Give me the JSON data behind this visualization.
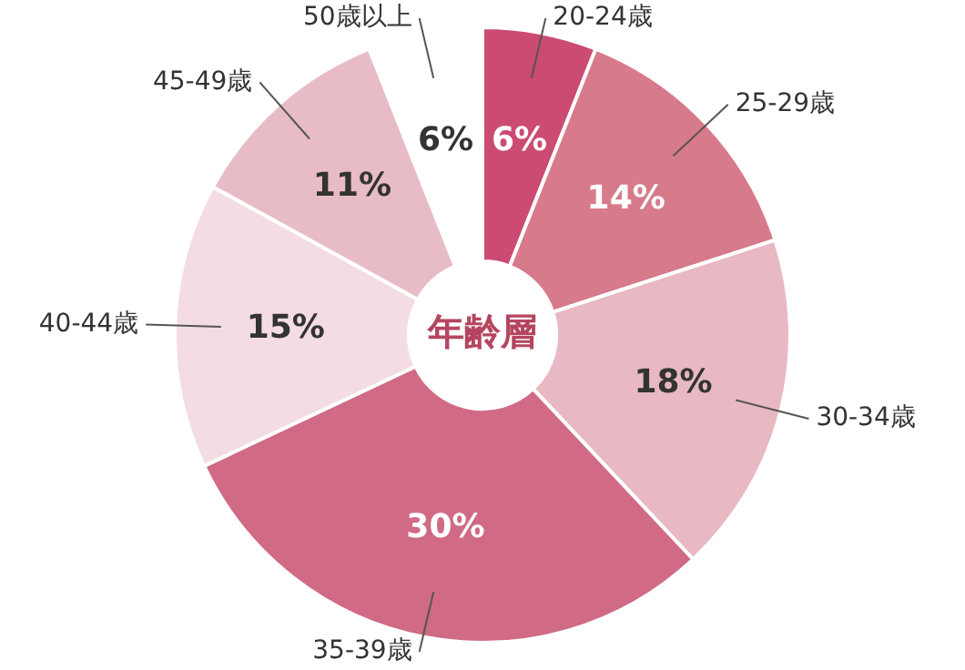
{
  "chart_data": {
    "type": "donut",
    "title": "年齢層",
    "categories": [
      "20-24歳",
      "25-29歳",
      "30-34歳",
      "35-39歳",
      "40-44歳",
      "45-49歳",
      "50歳以上"
    ],
    "values": [
      6,
      14,
      18,
      30,
      15,
      11,
      6
    ],
    "value_labels": [
      "6%",
      "14%",
      "18%",
      "30%",
      "15%",
      "11%",
      "6%"
    ],
    "colors": [
      "#cc4b72",
      "#d77a8c",
      "#e8b9c3",
      "#d06a85",
      "#f3dde2",
      "#e8bcc6",
      "#ffffff"
    ],
    "legend": false
  }
}
